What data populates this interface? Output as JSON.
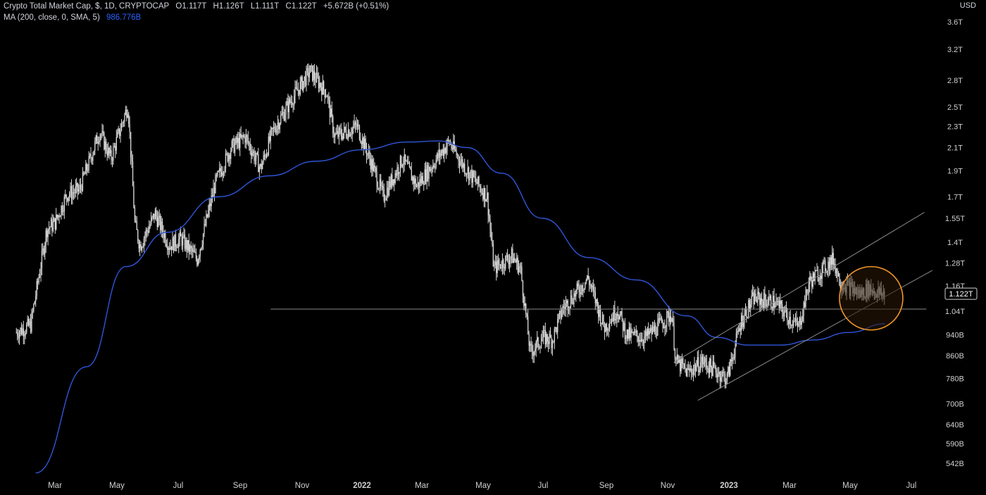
{
  "header": {
    "symbol_line": "Crypto Total Market Cap, $, 1D, CRYPTOCAP",
    "open": "O1.117T",
    "high": "H1.126T",
    "low": "L1.111T",
    "close": "C1.122T",
    "change": "+5.672B (+0.51%)",
    "ma_label": "MA (200, close, 0, SMA, 5)",
    "ma_value": "986.776B",
    "currency": "USD",
    "last_price_tag": "1.122T"
  },
  "colors": {
    "background": "#000000",
    "price": "#d9d9d9",
    "ma": "#2f56d9",
    "annotation_lines": "#8a8a8a",
    "highlight_circle": "#f0952a",
    "highlight_fill": "#2a1705",
    "axis_text": "#cfcfcf"
  },
  "chart_data": {
    "type": "line",
    "scale": "log",
    "y_ticks": [
      "3.6T",
      "3.2T",
      "2.8T",
      "2.5T",
      "2.3T",
      "2.1T",
      "1.9T",
      "1.7T",
      "1.55T",
      "1.4T",
      "1.28T",
      "1.16T",
      "1.04T",
      "940B",
      "860B",
      "780B",
      "700B",
      "640B",
      "590B",
      "542B"
    ],
    "y_tick_values": [
      3.6,
      3.2,
      2.8,
      2.5,
      2.3,
      2.1,
      1.9,
      1.7,
      1.55,
      1.4,
      1.28,
      1.16,
      1.04,
      0.94,
      0.86,
      0.78,
      0.7,
      0.64,
      0.59,
      0.542
    ],
    "ylim": [
      0.5,
      3.9
    ],
    "x_ticks": [
      "Mar",
      "May",
      "Jul",
      "Sep",
      "Nov",
      "2022",
      "Mar",
      "May",
      "Jul",
      "Sep",
      "Nov",
      "2023",
      "Mar",
      "May",
      "Jul"
    ],
    "x_tick_bold": [
      false,
      false,
      false,
      false,
      false,
      true,
      false,
      false,
      false,
      false,
      false,
      true,
      false,
      false,
      false
    ],
    "x_tick_dates": [
      "2021-03-01",
      "2021-05-01",
      "2021-07-01",
      "2021-09-01",
      "2021-11-01",
      "2022-01-01",
      "2022-03-01",
      "2022-05-01",
      "2022-07-01",
      "2022-09-01",
      "2022-11-01",
      "2023-01-01",
      "2023-03-01",
      "2023-05-01",
      "2023-07-01"
    ],
    "series": [
      {
        "name": "Crypto Total Market Cap",
        "x": [
          "2021-01-22",
          "2021-02-05",
          "2021-02-21",
          "2021-03-01",
          "2021-03-13",
          "2021-03-25",
          "2021-04-14",
          "2021-04-25",
          "2021-05-12",
          "2021-05-19",
          "2021-05-24",
          "2021-06-08",
          "2021-06-22",
          "2021-07-04",
          "2021-07-20",
          "2021-08-07",
          "2021-08-23",
          "2021-09-06",
          "2021-09-21",
          "2021-10-03",
          "2021-10-20",
          "2021-11-09",
          "2021-11-26",
          "2021-12-04",
          "2021-12-27",
          "2022-01-10",
          "2022-01-22",
          "2022-02-10",
          "2022-02-24",
          "2022-03-28",
          "2022-04-11",
          "2022-04-25",
          "2022-05-05",
          "2022-05-12",
          "2022-05-30",
          "2022-06-08",
          "2022-06-18",
          "2022-07-01",
          "2022-07-10",
          "2022-07-20",
          "2022-08-14",
          "2022-08-30",
          "2022-09-12",
          "2022-09-21",
          "2022-10-10",
          "2022-10-29",
          "2022-11-05",
          "2022-11-09",
          "2022-11-21",
          "2022-12-05",
          "2022-12-30",
          "2023-01-13",
          "2023-01-25",
          "2023-02-15",
          "2023-03-10",
          "2023-03-21",
          "2023-04-14",
          "2023-04-21",
          "2023-05-11",
          "2023-05-20",
          "2023-05-31",
          "2023-06-05"
        ],
        "values": [
          0.95,
          0.98,
          1.48,
          1.52,
          1.72,
          1.75,
          2.25,
          2.0,
          2.52,
          1.5,
          1.38,
          1.58,
          1.38,
          1.42,
          1.3,
          1.8,
          2.1,
          2.2,
          1.92,
          2.25,
          2.55,
          2.92,
          2.65,
          2.2,
          2.3,
          1.97,
          1.7,
          2.0,
          1.78,
          2.15,
          1.95,
          1.8,
          1.7,
          1.25,
          1.32,
          1.25,
          0.87,
          0.93,
          0.92,
          1.05,
          1.2,
          0.97,
          1.05,
          0.94,
          0.93,
          1.0,
          1.03,
          0.84,
          0.8,
          0.84,
          0.78,
          1.0,
          1.1,
          1.08,
          0.97,
          1.18,
          1.3,
          1.18,
          1.12,
          1.15,
          1.12,
          1.122
        ]
      },
      {
        "name": "MA (200, close, 0, SMA, 5)",
        "x": [
          "2021-02-10",
          "2021-04-01",
          "2021-05-10",
          "2021-06-20",
          "2021-08-10",
          "2021-09-30",
          "2021-11-15",
          "2022-01-01",
          "2022-02-15",
          "2022-03-18",
          "2022-04-15",
          "2022-05-20",
          "2022-06-30",
          "2022-08-15",
          "2022-10-01",
          "2022-11-20",
          "2022-12-20",
          "2023-01-20",
          "2023-02-20",
          "2023-03-25",
          "2023-04-30",
          "2023-06-05"
        ],
        "values": [
          0.52,
          0.82,
          1.26,
          1.46,
          1.7,
          1.86,
          1.98,
          2.08,
          2.15,
          2.16,
          2.1,
          1.88,
          1.55,
          1.31,
          1.19,
          1.02,
          0.93,
          0.9,
          0.9,
          0.92,
          0.95,
          0.986
        ]
      }
    ],
    "annotations": {
      "horizontal_line": {
        "value": 1.05,
        "from": "2021-10-01",
        "to": "2023-07-16"
      },
      "channel_upper": {
        "from": [
          "2022-11-07",
          0.835
        ],
        "to": [
          "2023-07-14",
          1.59
        ]
      },
      "channel_lower": {
        "from": [
          "2022-12-01",
          0.71
        ],
        "to": [
          "2023-07-22",
          1.24
        ]
      },
      "highlight_circle": {
        "date": "2023-05-22",
        "value": 1.1
      }
    },
    "grid": false,
    "legend_position": "top-left"
  }
}
